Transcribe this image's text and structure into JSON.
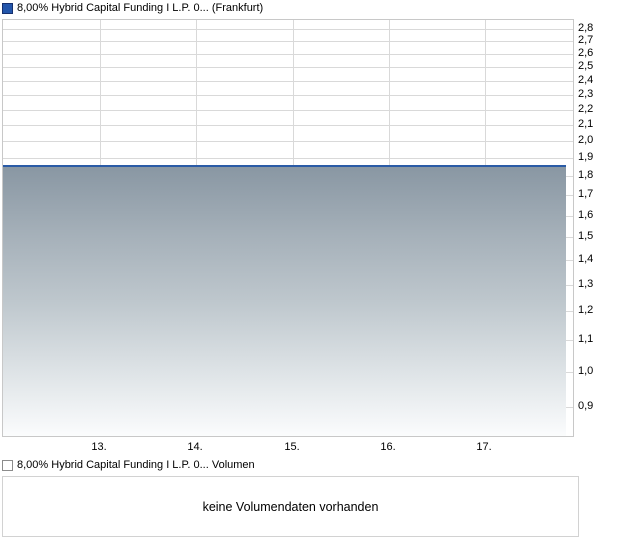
{
  "price_chart": {
    "legend_label": "8,00% Hybrid Capital Funding I L.P. 0... (Frankfurt)",
    "swatch_color": "#2356ab",
    "line_color": "#2a5ba6",
    "fill_top_color": "#8997a3",
    "fill_bottom_color": "#fbfcfd",
    "gridline_color": "#d9d9d9",
    "axis_border_color": "#c8c8c8"
  },
  "volume_chart": {
    "legend_label": "8,00% Hybrid Capital Funding I L.P. 0... Volumen",
    "empty_message": "keine Volumendaten vorhanden",
    "border_color": "#d2d2d2"
  },
  "chart_data": [
    {
      "type": "area",
      "title": "8,00% Hybrid Capital Funding I L.P. 0... (Frankfurt)",
      "x": [
        "13.",
        "14.",
        "15.",
        "16.",
        "17."
      ],
      "series": [
        {
          "name": "8,00% Hybrid Capital Funding I L.P. 0...",
          "values": [
            1.85,
            1.85,
            1.85,
            1.85,
            1.85
          ]
        }
      ],
      "y_scale": "log",
      "ylim": [
        0.825,
        2.88
      ],
      "y_ticks": {
        "values": [
          2.8,
          2.7,
          2.6,
          2.5,
          2.4,
          2.3,
          2.2,
          2.1,
          2.0,
          1.9,
          1.8,
          1.7,
          1.6,
          1.5,
          1.4,
          1.3,
          1.2,
          1.1,
          1.0,
          0.9
        ],
        "labels": [
          "2,8",
          "2,7",
          "2,6",
          "2,5",
          "2,4",
          "2,3",
          "2,2",
          "2,1",
          "2,0",
          "1,9",
          "1,8",
          "1,7",
          "1,6",
          "1,5",
          "1,4",
          "1,3",
          "1,2",
          "1,1",
          "1,0",
          "0,9"
        ]
      },
      "grid": true,
      "legend_position": "top-left",
      "yaxis_position": "right"
    },
    {
      "type": "bar",
      "title": "8,00% Hybrid Capital Funding I L.P. 0... Volumen",
      "x": [],
      "values": [],
      "message": "keine Volumendaten vorhanden"
    }
  ]
}
